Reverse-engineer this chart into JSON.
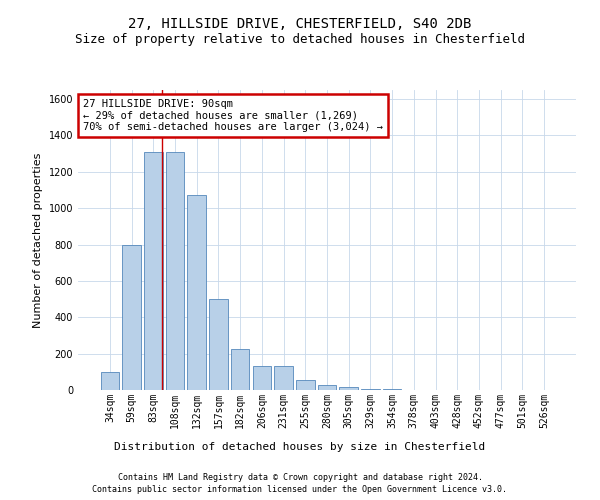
{
  "title": "27, HILLSIDE DRIVE, CHESTERFIELD, S40 2DB",
  "subtitle": "Size of property relative to detached houses in Chesterfield",
  "xlabel": "Distribution of detached houses by size in Chesterfield",
  "ylabel": "Number of detached properties",
  "bar_labels": [
    "34sqm",
    "59sqm",
    "83sqm",
    "108sqm",
    "132sqm",
    "157sqm",
    "182sqm",
    "206sqm",
    "231sqm",
    "255sqm",
    "280sqm",
    "305sqm",
    "329sqm",
    "354sqm",
    "378sqm",
    "403sqm",
    "428sqm",
    "452sqm",
    "477sqm",
    "501sqm",
    "526sqm"
  ],
  "bar_values": [
    100,
    800,
    1310,
    1310,
    1075,
    500,
    225,
    130,
    130,
    55,
    30,
    15,
    7,
    3,
    2,
    1,
    1,
    0,
    0,
    0,
    0
  ],
  "bar_color": "#b8d0e8",
  "bar_edge_color": "#5588bb",
  "vline_x_index": 2.42,
  "vline_color": "#cc0000",
  "ylim": [
    0,
    1650
  ],
  "yticks": [
    0,
    200,
    400,
    600,
    800,
    1000,
    1200,
    1400,
    1600
  ],
  "annotation_line1": "27 HILLSIDE DRIVE: 90sqm",
  "annotation_line2": "← 29% of detached houses are smaller (1,269)",
  "annotation_line3": "70% of semi-detached houses are larger (3,024) →",
  "annotation_box_color": "#cc0000",
  "footnote1": "Contains HM Land Registry data © Crown copyright and database right 2024.",
  "footnote2": "Contains public sector information licensed under the Open Government Licence v3.0.",
  "background_color": "#ffffff",
  "title_fontsize": 10,
  "subtitle_fontsize": 9,
  "tick_fontsize": 7,
  "ylabel_fontsize": 8,
  "xlabel_fontsize": 8,
  "footnote_fontsize": 6
}
